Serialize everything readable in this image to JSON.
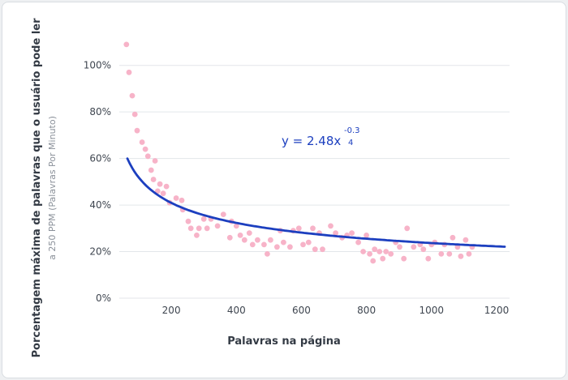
{
  "chart_data": {
    "type": "scatter",
    "xlabel": "Palavras na página",
    "ylabel": "Porcentagem máxima de palavras que o usuário pode ler",
    "ylabel_sub": "a 250 PPM (Palavras Por Minuto)",
    "xlim": [
      40,
      1240
    ],
    "ylim": [
      0,
      110
    ],
    "x_ticks": [
      200,
      400,
      600,
      800,
      1000,
      1200
    ],
    "x_tick_labels": [
      "200",
      "400",
      "600",
      "800",
      "1000",
      "1200"
    ],
    "y_ticks": [
      0,
      20,
      40,
      60,
      80,
      100
    ],
    "y_tick_labels": [
      "0%",
      "20%",
      "40%",
      "60%",
      "80%",
      "100%"
    ],
    "grid": "horizontal",
    "colors": {
      "points": "#f7b3c8",
      "curve": "#1c3fbf",
      "grid": "#e3e6ea"
    },
    "points": [
      [
        62,
        109
      ],
      [
        70,
        97
      ],
      [
        80,
        87
      ],
      [
        88,
        79
      ],
      [
        95,
        72
      ],
      [
        110,
        67
      ],
      [
        120,
        64
      ],
      [
        128,
        61
      ],
      [
        138,
        55
      ],
      [
        145,
        51
      ],
      [
        150,
        59
      ],
      [
        158,
        46
      ],
      [
        165,
        49
      ],
      [
        175,
        45
      ],
      [
        185,
        48
      ],
      [
        195,
        41
      ],
      [
        215,
        43
      ],
      [
        232,
        42
      ],
      [
        235,
        38
      ],
      [
        252,
        33
      ],
      [
        260,
        30
      ],
      [
        278,
        27
      ],
      [
        285,
        30
      ],
      [
        300,
        34
      ],
      [
        310,
        30
      ],
      [
        322,
        34
      ],
      [
        342,
        31
      ],
      [
        360,
        36
      ],
      [
        380,
        26
      ],
      [
        385,
        33
      ],
      [
        400,
        31
      ],
      [
        412,
        27
      ],
      [
        425,
        25
      ],
      [
        440,
        28
      ],
      [
        450,
        23
      ],
      [
        465,
        25
      ],
      [
        485,
        23
      ],
      [
        495,
        19
      ],
      [
        505,
        25
      ],
      [
        525,
        22
      ],
      [
        535,
        29
      ],
      [
        545,
        24
      ],
      [
        565,
        22
      ],
      [
        575,
        29
      ],
      [
        592,
        30
      ],
      [
        605,
        23
      ],
      [
        622,
        24
      ],
      [
        635,
        30
      ],
      [
        642,
        21
      ],
      [
        655,
        28
      ],
      [
        665,
        21
      ],
      [
        690,
        31
      ],
      [
        705,
        28
      ],
      [
        725,
        26
      ],
      [
        740,
        27
      ],
      [
        755,
        28
      ],
      [
        775,
        24
      ],
      [
        790,
        20
      ],
      [
        800,
        27
      ],
      [
        810,
        19
      ],
      [
        820,
        16
      ],
      [
        825,
        21
      ],
      [
        840,
        20
      ],
      [
        850,
        17
      ],
      [
        860,
        20
      ],
      [
        875,
        19
      ],
      [
        890,
        24
      ],
      [
        902,
        22
      ],
      [
        915,
        17
      ],
      [
        925,
        30
      ],
      [
        945,
        22
      ],
      [
        965,
        23
      ],
      [
        975,
        21
      ],
      [
        990,
        17
      ],
      [
        1000,
        23
      ],
      [
        1010,
        24
      ],
      [
        1030,
        19
      ],
      [
        1040,
        23
      ],
      [
        1055,
        19
      ],
      [
        1065,
        26
      ],
      [
        1080,
        22
      ],
      [
        1090,
        18
      ],
      [
        1105,
        25
      ],
      [
        1115,
        19
      ],
      [
        1125,
        22
      ]
    ],
    "fit": {
      "coefficient": 2.48,
      "exponent": -0.34,
      "x_start": 65,
      "x_end": 1225
    },
    "equation": {
      "base": "y = 2.48x",
      "exp_top": "-0.3",
      "exp_bottom": "4"
    }
  }
}
